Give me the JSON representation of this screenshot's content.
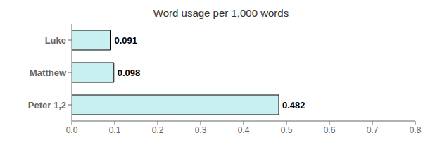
{
  "chart_data": {
    "type": "bar",
    "title": "Word usage per 1,000 words",
    "orientation": "horizontal",
    "categories": [
      "Peter 1,2",
      "Matthew",
      "Luke"
    ],
    "values": [
      0.482,
      0.098,
      0.091
    ],
    "color": "#c8f0f0",
    "xlim": [
      0.0,
      0.8
    ],
    "xticks": [
      {
        "value": 0.0,
        "label": "0.0"
      },
      0.1,
      0.2,
      0.3,
      0.4,
      0.5,
      0.6,
      0.7,
      0.8
    ],
    "data_labels": true,
    "grid": false
  }
}
